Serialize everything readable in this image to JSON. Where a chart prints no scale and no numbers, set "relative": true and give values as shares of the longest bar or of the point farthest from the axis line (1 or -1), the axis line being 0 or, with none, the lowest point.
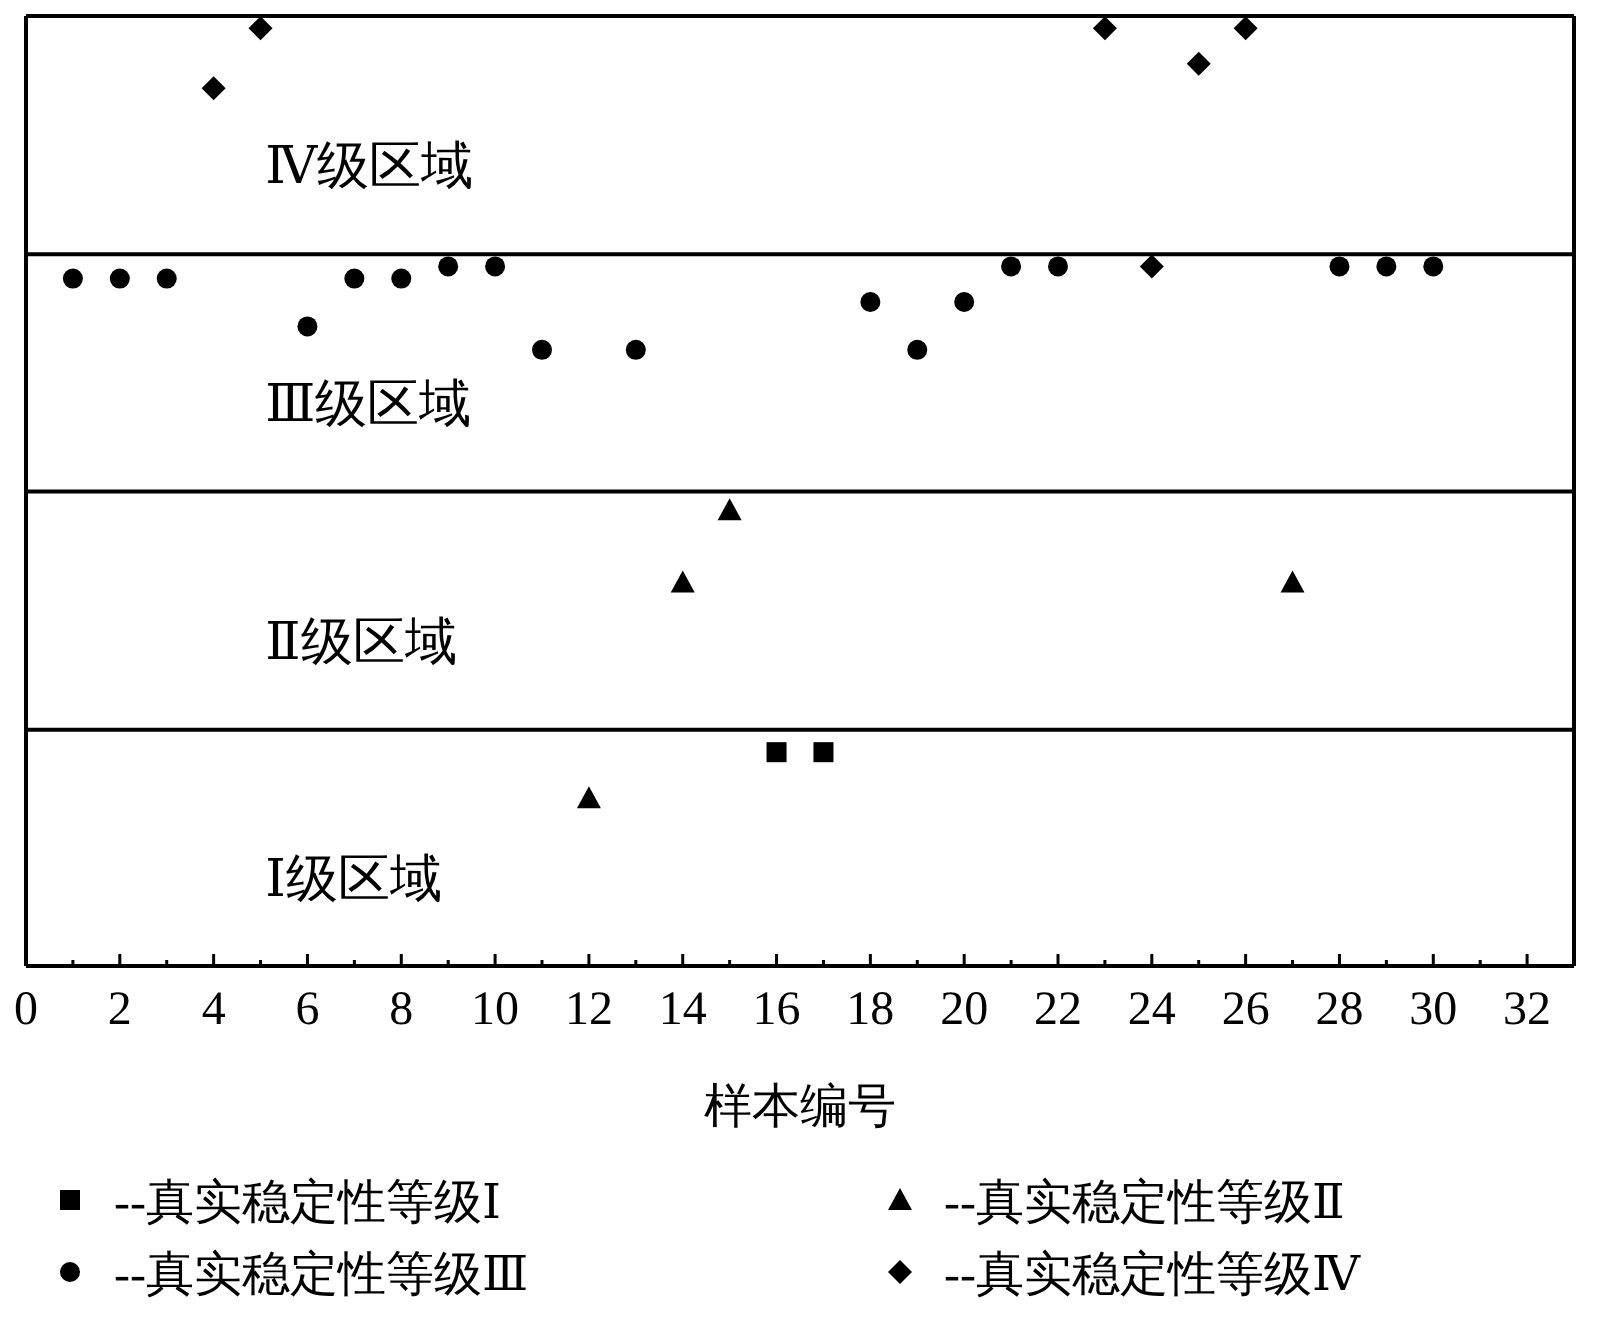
{
  "chart_data": {
    "type": "scatter",
    "relative": true,
    "xlabel": "样本编号",
    "xlim": [
      0,
      33
    ],
    "xticks": [
      0,
      {
        "value": 1,
        "label": null
      },
      2,
      {
        "value": 3,
        "label": null
      },
      4,
      {
        "value": 5,
        "label": null
      },
      6,
      {
        "value": 7,
        "label": null
      },
      8,
      {
        "value": 9,
        "label": null
      },
      10,
      {
        "value": 11,
        "label": null
      },
      12,
      {
        "value": 13,
        "label": null
      },
      14,
      {
        "value": 15,
        "label": null
      },
      16,
      {
        "value": 17,
        "label": null
      },
      18,
      {
        "value": 19,
        "label": null
      },
      20,
      {
        "value": 21,
        "label": null
      },
      22,
      {
        "value": 23,
        "label": null
      },
      24,
      {
        "value": 25,
        "label": null
      },
      26,
      {
        "value": 27,
        "label": null
      },
      28,
      {
        "value": 29,
        "label": null
      },
      30,
      {
        "value": 31,
        "label": null
      },
      32
    ],
    "tick_labels": "x",
    "grid": false,
    "legend": "bottom",
    "ref_lines": [
      {
        "axis": "y",
        "value": 0.759,
        "color": "#000000"
      },
      {
        "axis": "y",
        "value": 0.506,
        "color": "#000000"
      },
      {
        "axis": "y",
        "value": 0.252,
        "color": "#000000"
      }
    ],
    "annotations": [
      "Ⅳ级区域",
      "Ⅲ级区域",
      "Ⅱ级区域",
      "Ⅰ级区域"
    ],
    "series": [
      {
        "name": "--真实稳定性等级Ⅰ",
        "color": "#000000",
        "marker": "square",
        "x": [
          16,
          17
        ],
        "values": [
          0.228,
          0.228
        ]
      },
      {
        "name": "--真实稳定性等级Ⅱ",
        "color": "#000000",
        "marker": "triangle",
        "x": [
          12,
          14,
          15,
          27
        ],
        "values": [
          0.179,
          0.409,
          0.486,
          0.409
        ]
      },
      {
        "name": "--真实稳定性等级Ⅲ",
        "color": "#000000",
        "marker": "circle",
        "x": [
          1,
          2,
          3,
          6,
          7,
          8,
          9,
          10,
          11,
          13,
          18,
          19,
          20,
          21,
          22,
          28,
          29,
          30
        ],
        "values": [
          0.733,
          0.733,
          0.733,
          0.682,
          0.733,
          0.733,
          0.746,
          0.746,
          0.657,
          0.657,
          0.708,
          0.657,
          0.708,
          0.746,
          0.746,
          0.746,
          0.746,
          0.746
        ]
      },
      {
        "name": "--真实稳定性等级Ⅳ",
        "color": "#000000",
        "marker": "diamond",
        "x": [
          4,
          5,
          23,
          24,
          25,
          26
        ],
        "values": [
          0.936,
          1,
          1,
          0.746,
          0.962,
          1
        ]
      }
    ]
  }
}
